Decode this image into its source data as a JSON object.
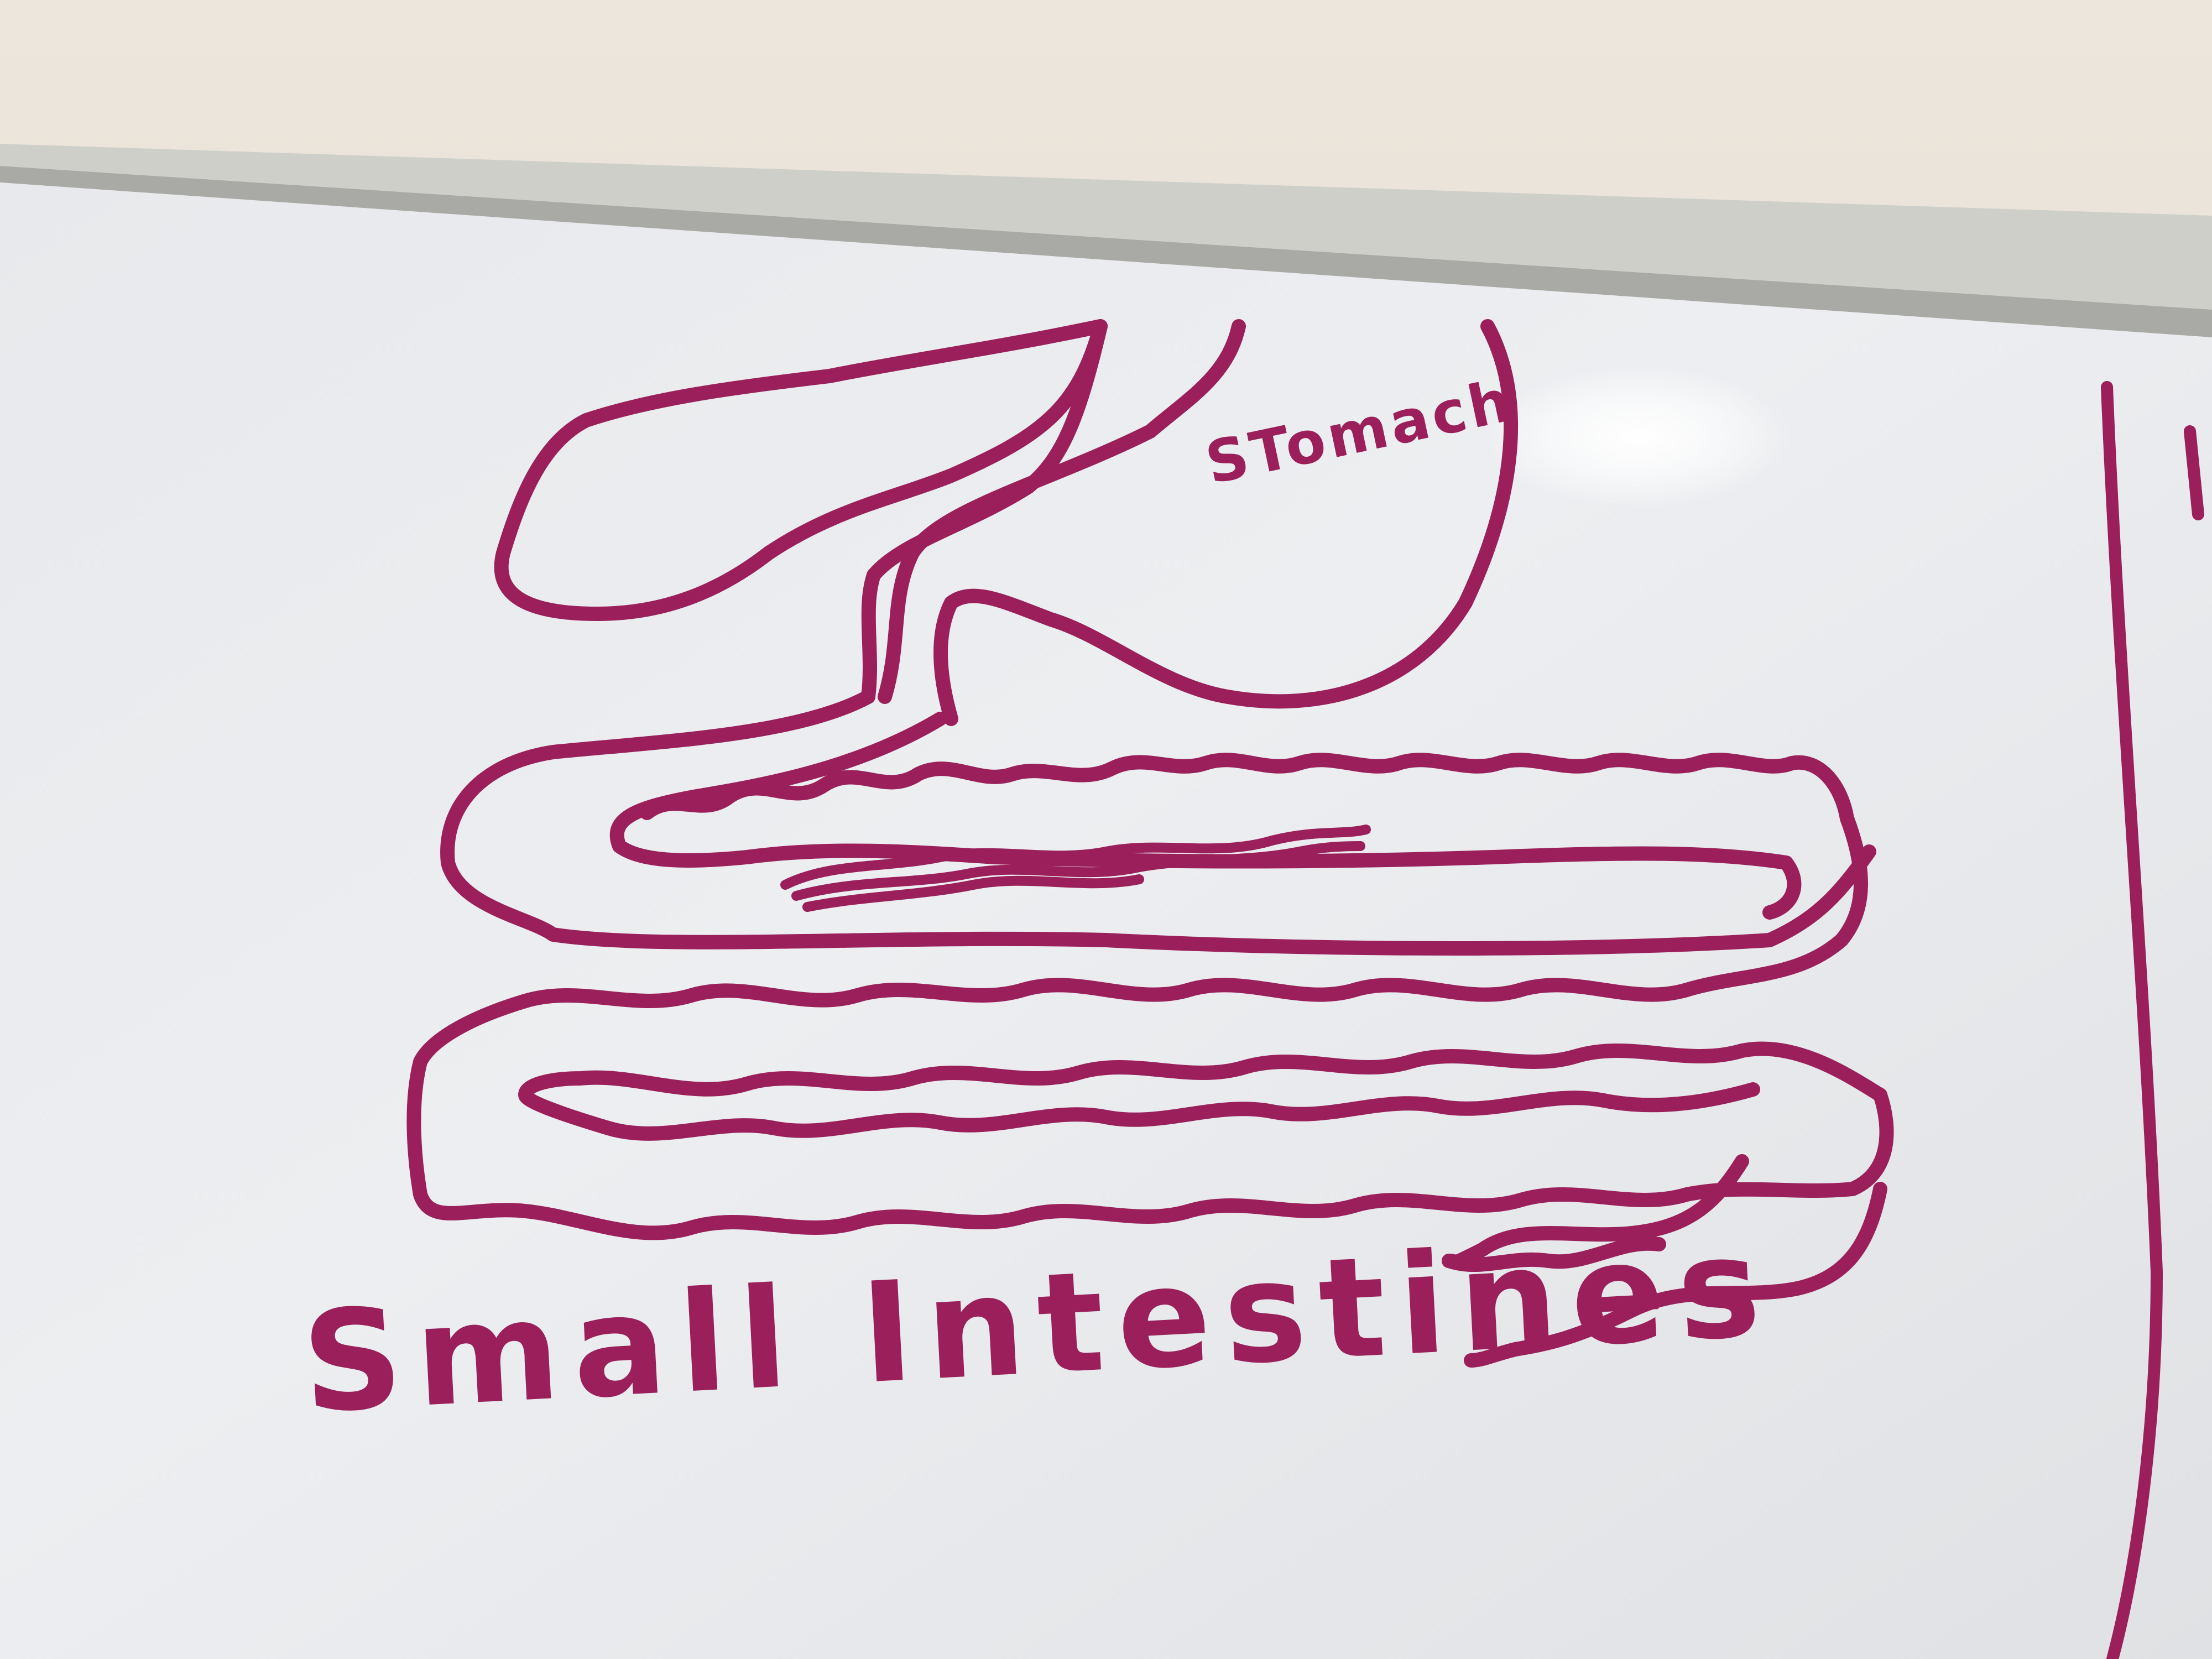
{
  "labels": {
    "stomach": "STomach",
    "small_intestines": "Small Intestines"
  },
  "colors": {
    "marker": "#9a1f5a",
    "whiteboard": "#e9ecef",
    "wall": "#e6e0d8",
    "frame": "#c9c9c4"
  }
}
